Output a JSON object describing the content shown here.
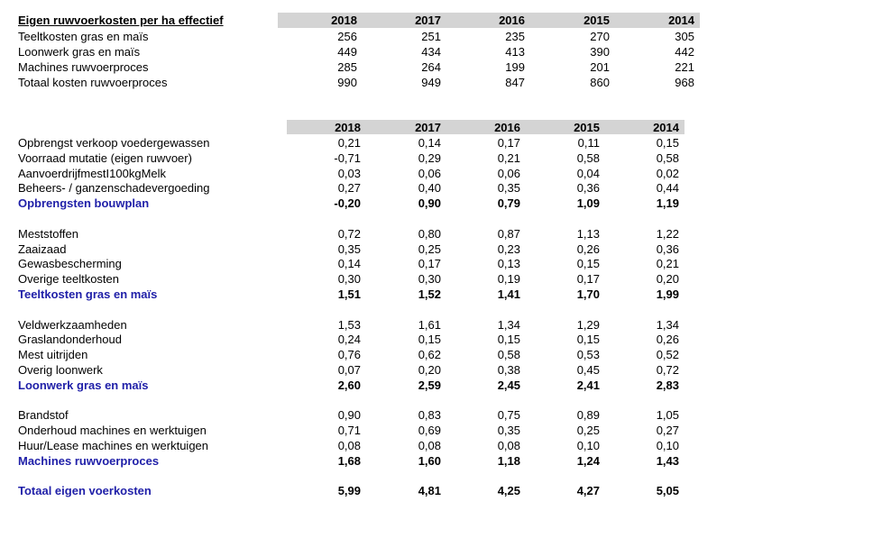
{
  "table1": {
    "title": "Eigen ruwvoerkosten per ha effectief",
    "years": [
      "2018",
      "2017",
      "2016",
      "2015",
      "2014"
    ],
    "rows": [
      {
        "label": "Teeltkosten gras en maïs",
        "values": [
          "256",
          "251",
          "235",
          "270",
          "305"
        ]
      },
      {
        "label": "Loonwerk gras en maïs",
        "values": [
          "449",
          "434",
          "413",
          "390",
          "442"
        ]
      },
      {
        "label": "Machines ruwvoerproces",
        "values": [
          "285",
          "264",
          "199",
          "201",
          "221"
        ]
      },
      {
        "label": "Totaal kosten ruwvoerproces",
        "values": [
          "990",
          "949",
          "847",
          "860",
          "968"
        ]
      }
    ]
  },
  "table2": {
    "years": [
      "2018",
      "2017",
      "2016",
      "2015",
      "2014"
    ],
    "groups": [
      {
        "rows": [
          {
            "label": "Opbrengst verkoop voedergewassen",
            "values": [
              "0,21",
              "0,14",
              "0,17",
              "0,11",
              "0,15"
            ]
          },
          {
            "label": "Voorraad mutatie (eigen ruwvoer)",
            "values": [
              "-0,71",
              "0,29",
              "0,21",
              "0,58",
              "0,58"
            ]
          },
          {
            "label": "AanvoerdrijfmestI100kgMelk",
            "values": [
              "0,03",
              "0,06",
              "0,06",
              "0,04",
              "0,02"
            ]
          },
          {
            "label": "Beheers- / ganzenschadevergoeding",
            "values": [
              "0,27",
              "0,40",
              "0,35",
              "0,36",
              "0,44"
            ]
          }
        ],
        "total": {
          "label": "Opbrengsten bouwplan",
          "values": [
            "-0,20",
            "0,90",
            "0,79",
            "1,09",
            "1,19"
          ]
        }
      },
      {
        "rows": [
          {
            "label": "Meststoffen",
            "values": [
              "0,72",
              "0,80",
              "0,87",
              "1,13",
              "1,22"
            ]
          },
          {
            "label": "Zaaizaad",
            "values": [
              "0,35",
              "0,25",
              "0,23",
              "0,26",
              "0,36"
            ]
          },
          {
            "label": "Gewasbescherming",
            "values": [
              "0,14",
              "0,17",
              "0,13",
              "0,15",
              "0,21"
            ]
          },
          {
            "label": "Overige teeltkosten",
            "values": [
              "0,30",
              "0,30",
              "0,19",
              "0,17",
              "0,20"
            ]
          }
        ],
        "total": {
          "label": "Teeltkosten gras en maïs",
          "values": [
            "1,51",
            "1,52",
            "1,41",
            "1,70",
            "1,99"
          ]
        }
      },
      {
        "rows": [
          {
            "label": "Veldwerkzaamheden",
            "values": [
              "1,53",
              "1,61",
              "1,34",
              "1,29",
              "1,34"
            ]
          },
          {
            "label": "Graslandonderhoud",
            "values": [
              "0,24",
              "0,15",
              "0,15",
              "0,15",
              "0,26"
            ]
          },
          {
            "label": "Mest uitrijden",
            "values": [
              "0,76",
              "0,62",
              "0,58",
              "0,53",
              "0,52"
            ]
          },
          {
            "label": "Overig loonwerk",
            "values": [
              "0,07",
              "0,20",
              "0,38",
              "0,45",
              "0,72"
            ]
          }
        ],
        "total": {
          "label": "Loonwerk gras en maïs",
          "values": [
            "2,60",
            "2,59",
            "2,45",
            "2,41",
            "2,83"
          ]
        }
      },
      {
        "rows": [
          {
            "label": "Brandstof",
            "values": [
              "0,90",
              "0,83",
              "0,75",
              "0,89",
              "1,05"
            ]
          },
          {
            "label": "Onderhoud machines en werktuigen",
            "values": [
              "0,71",
              "0,69",
              "0,35",
              "0,25",
              "0,27"
            ]
          },
          {
            "label": "Huur/Lease machines en werktuigen",
            "values": [
              "0,08",
              "0,08",
              "0,08",
              "0,10",
              "0,10"
            ]
          }
        ],
        "total": {
          "label": "Machines ruwvoerproces",
          "values": [
            "1,68",
            "1,60",
            "1,18",
            "1,24",
            "1,43"
          ]
        }
      }
    ],
    "grand_total": {
      "label": "Totaal eigen voerkosten",
      "values": [
        "5,99",
        "4,81",
        "4,25",
        "4,27",
        "5,05"
      ]
    }
  },
  "colors": {
    "header_bg": "#d4d4d4",
    "total_text": "#1f1fa8"
  }
}
